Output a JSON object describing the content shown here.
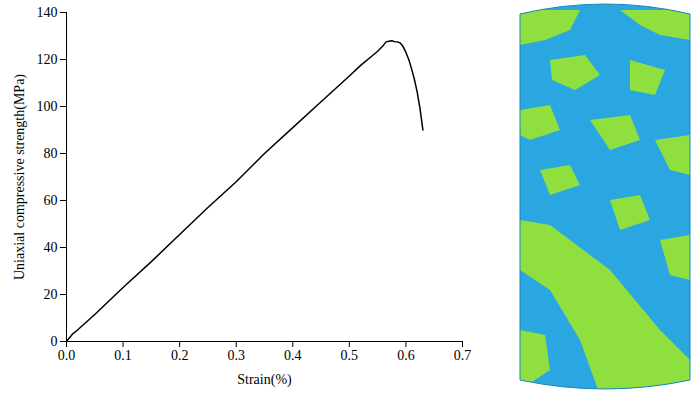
{
  "chart_data": {
    "type": "line",
    "x_label": "Strain(%)",
    "y_label": "Uniaxial compressive strength(MPa)",
    "x": [
      0,
      0.005,
      0.01,
      0.02,
      0.05,
      0.1,
      0.15,
      0.2,
      0.25,
      0.3,
      0.35,
      0.4,
      0.45,
      0.5,
      0.52,
      0.54,
      0.55,
      0.56,
      0.565,
      0.57,
      0.575,
      0.58,
      0.585,
      0.59,
      0.595,
      0.6,
      0.605,
      0.61,
      0.615,
      0.62,
      0.625,
      0.63
    ],
    "values": [
      0,
      1.5,
      3,
      5,
      11.5,
      23,
      34,
      45.5,
      57,
      68,
      80,
      91,
      102,
      113,
      117.5,
      121.5,
      123.5,
      126,
      127.5,
      127.8,
      128,
      127.6,
      127.5,
      127,
      125.5,
      123,
      120,
      116,
      111.5,
      106,
      99,
      90
    ],
    "color": "#000000",
    "xlim": [
      0,
      0.7
    ],
    "xticks": [
      {
        "value": 0,
        "label": "0.0"
      },
      0.1,
      0.2,
      0.3,
      0.4,
      0.5,
      0.6,
      0.7
    ],
    "ylim": [
      0,
      140
    ],
    "yticks": [
      0,
      20,
      40,
      60,
      80,
      100,
      120,
      140
    ],
    "grid": false
  }
}
